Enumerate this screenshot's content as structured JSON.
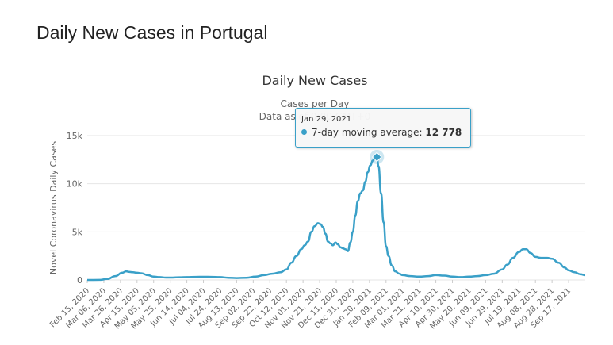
{
  "page": {
    "title": "Daily New Cases in Portugal"
  },
  "tooltip": {
    "date": "Jan 29, 2021",
    "series_label": "7-day moving average:",
    "value": "12 778"
  },
  "colors": {
    "series": "#3aa0c8",
    "grid": "#e6e6e6",
    "text": "#333333"
  },
  "chart_data": {
    "type": "line",
    "title": "Daily New Cases",
    "subtitle_line1": "Cases per Day",
    "subtitle_line2": "Data as of 0:00 GMT+0",
    "ylabel": "Novel Coronavirus Daily Cases",
    "xlabel": "",
    "ylim": [
      0,
      15000
    ],
    "yticks": [
      0,
      5000,
      10000,
      15000
    ],
    "ytick_labels": [
      "0",
      "5k",
      "10k",
      "15k"
    ],
    "grid": true,
    "legend": "none",
    "x_tick_labels": [
      "Feb 15, 2020",
      "Mar 06, 2020",
      "Mar 26, 2020",
      "Apr 15, 2020",
      "May 05, 2020",
      "May 25, 2020",
      "Jun 14, 2020",
      "Jul 04, 2020",
      "Jul 24, 2020",
      "Aug 13, 2020",
      "Sep 02, 2020",
      "Sep 22, 2020",
      "Oct 12, 2020",
      "Nov 01, 2020",
      "Nov 21, 2020",
      "Dec 11, 2020",
      "Dec 31, 2020",
      "Jan 20, 2021",
      "Feb 09, 2021",
      "Mar 01, 2021",
      "Mar 21, 2021",
      "Apr 10, 2021",
      "Apr 30, 2021",
      "May 20, 2021",
      "Jun 09, 2021",
      "Jun 29, 2021",
      "Jul 19, 2021",
      "Aug 08, 2021",
      "Aug 28, 2021",
      "Sep 17, 2021"
    ],
    "x_domain": [
      "2020-02-15",
      "2021-10-07"
    ],
    "highlight": {
      "x": "2021-01-29",
      "y": 12778
    },
    "series": [
      {
        "name": "7-day moving average",
        "x": [
          "2020-02-15",
          "2020-03-01",
          "2020-03-10",
          "2020-03-20",
          "2020-03-28",
          "2020-04-02",
          "2020-04-05",
          "2020-04-10",
          "2020-04-15",
          "2020-04-20",
          "2020-04-28",
          "2020-05-05",
          "2020-05-12",
          "2020-05-20",
          "2020-05-28",
          "2020-06-05",
          "2020-06-14",
          "2020-06-25",
          "2020-07-04",
          "2020-07-14",
          "2020-07-24",
          "2020-08-03",
          "2020-08-13",
          "2020-08-25",
          "2020-09-05",
          "2020-09-15",
          "2020-09-25",
          "2020-10-05",
          "2020-10-12",
          "2020-10-18",
          "2020-10-24",
          "2020-10-30",
          "2020-11-03",
          "2020-11-07",
          "2020-11-11",
          "2020-11-15",
          "2020-11-19",
          "2020-11-22",
          "2020-11-25",
          "2020-11-28",
          "2020-12-01",
          "2020-12-04",
          "2020-12-07",
          "2020-12-10",
          "2020-12-13",
          "2020-12-16",
          "2020-12-19",
          "2020-12-22",
          "2020-12-25",
          "2020-12-28",
          "2020-12-31",
          "2021-01-03",
          "2021-01-06",
          "2021-01-09",
          "2021-01-12",
          "2021-01-15",
          "2021-01-18",
          "2021-01-21",
          "2021-01-24",
          "2021-01-27",
          "2021-01-29",
          "2021-01-31",
          "2021-02-03",
          "2021-02-06",
          "2021-02-09",
          "2021-02-12",
          "2021-02-16",
          "2021-02-20",
          "2021-02-25",
          "2021-03-01",
          "2021-03-10",
          "2021-03-21",
          "2021-04-01",
          "2021-04-10",
          "2021-04-20",
          "2021-04-30",
          "2021-05-10",
          "2021-05-20",
          "2021-05-30",
          "2021-06-09",
          "2021-06-19",
          "2021-06-29",
          "2021-07-05",
          "2021-07-12",
          "2021-07-19",
          "2021-07-24",
          "2021-07-28",
          "2021-08-02",
          "2021-08-08",
          "2021-08-15",
          "2021-08-22",
          "2021-08-28",
          "2021-09-05",
          "2021-09-12",
          "2021-09-17",
          "2021-09-24",
          "2021-10-01",
          "2021-10-07"
        ],
        "values": [
          0,
          10,
          100,
          400,
          750,
          900,
          850,
          800,
          750,
          700,
          500,
          350,
          300,
          250,
          250,
          280,
          300,
          320,
          330,
          320,
          300,
          230,
          200,
          230,
          350,
          500,
          650,
          800,
          1100,
          1800,
          2500,
          3200,
          3600,
          4000,
          5000,
          5600,
          5900,
          5800,
          5500,
          4800,
          4000,
          3800,
          3600,
          3900,
          3700,
          3400,
          3300,
          3200,
          3000,
          3900,
          5000,
          6700,
          8200,
          9000,
          9300,
          10200,
          11200,
          11900,
          12400,
          12700,
          12778,
          11800,
          9000,
          6000,
          3500,
          2500,
          1500,
          900,
          650,
          500,
          400,
          350,
          400,
          500,
          450,
          350,
          300,
          350,
          400,
          500,
          650,
          1100,
          1600,
          2300,
          2900,
          3200,
          3200,
          2800,
          2400,
          2300,
          2300,
          2200,
          1800,
          1300,
          1000,
          800,
          600,
          500
        ]
      }
    ]
  }
}
